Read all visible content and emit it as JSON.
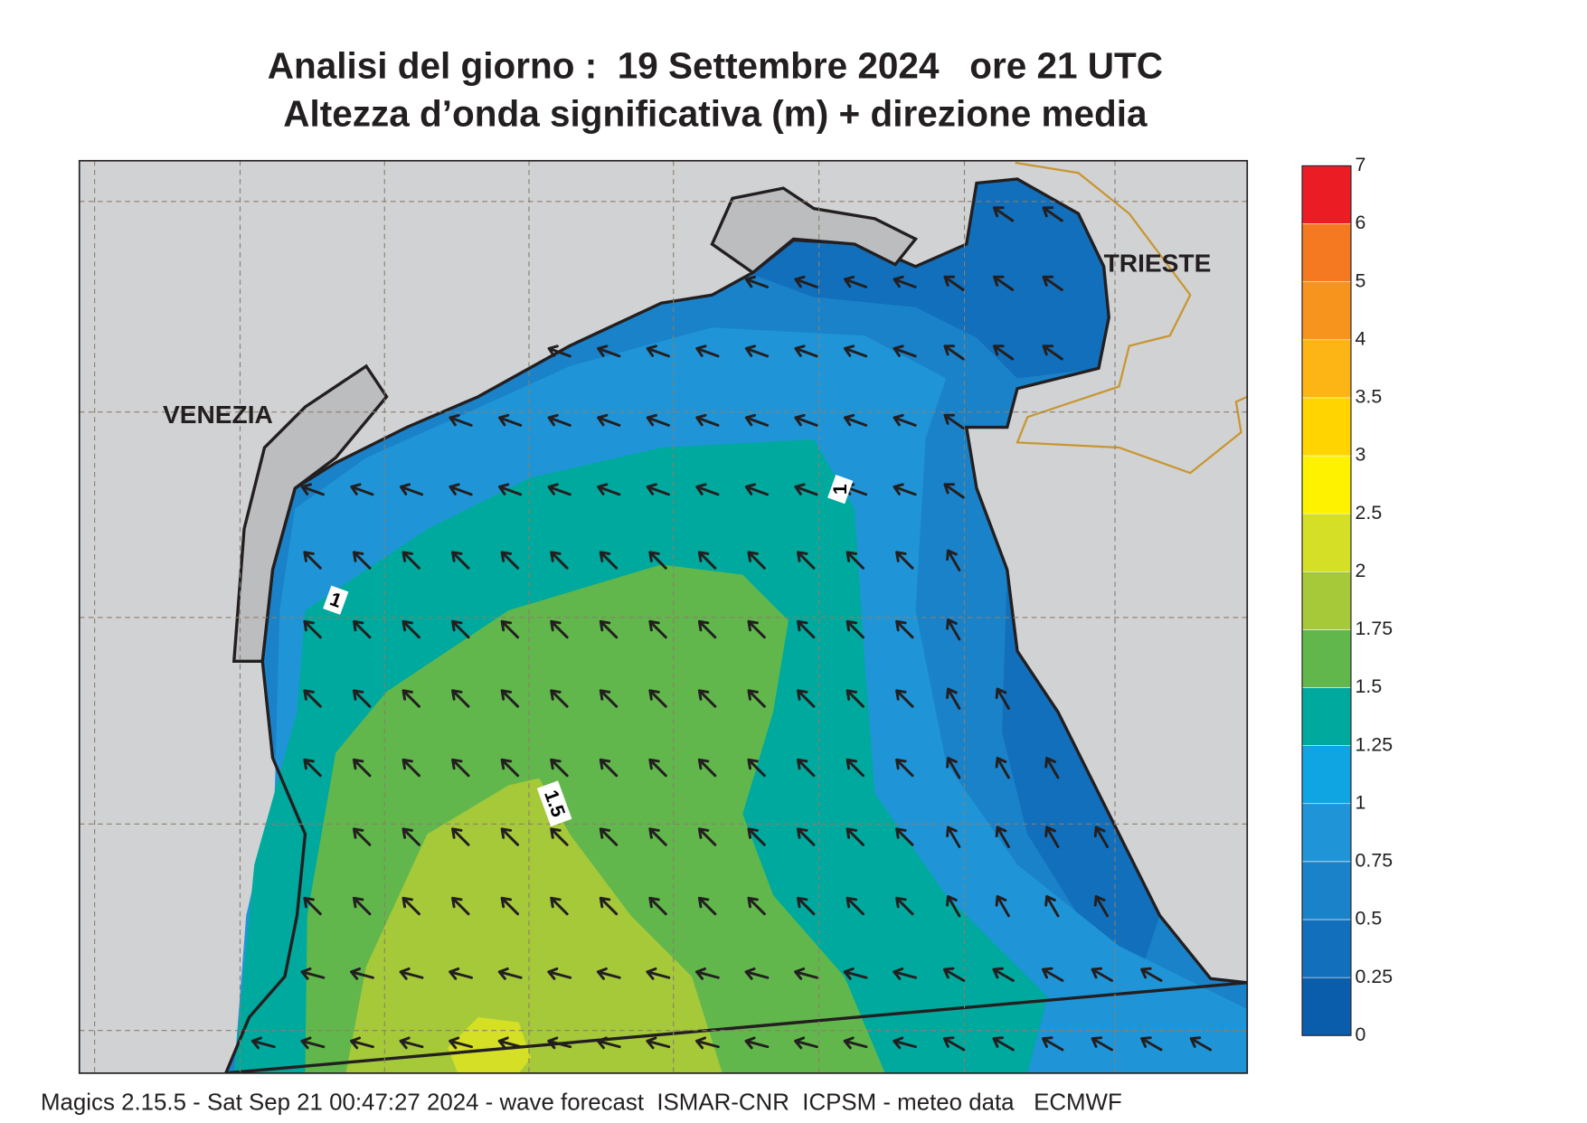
{
  "title": {
    "line1": "Analisi del giorno :  19 Settembre 2024   ore 21 UTC",
    "line2": "Altezza d’onda significativa (m) + direzione media"
  },
  "places": {
    "venezia": "VENEZIA",
    "trieste": "TRIESTE"
  },
  "contour_labels": [
    1,
    1,
    1.5
  ],
  "legend": {
    "levels": [
      0,
      0.25,
      0.5,
      0.75,
      1,
      1.25,
      1.5,
      1.75,
      2,
      2.5,
      3,
      3.5,
      4,
      5,
      6,
      7
    ],
    "colors": [
      "#0a5dab",
      "#116fbb",
      "#1a82c9",
      "#1f95d8",
      "#0ea5e2",
      "#00a99d",
      "#62b74c",
      "#a6c93a",
      "#d4df26",
      "#fff200",
      "#ffd400",
      "#fdb515",
      "#f7941d",
      "#f47920",
      "#ec1c24",
      "#ed1a6f"
    ]
  },
  "footer": "Magics 2.15.5 - Sat Sep 21 00:47:27 2024 - wave forecast  ISMAR-CNR  ICPSM - meteo data   ECMWF"
}
